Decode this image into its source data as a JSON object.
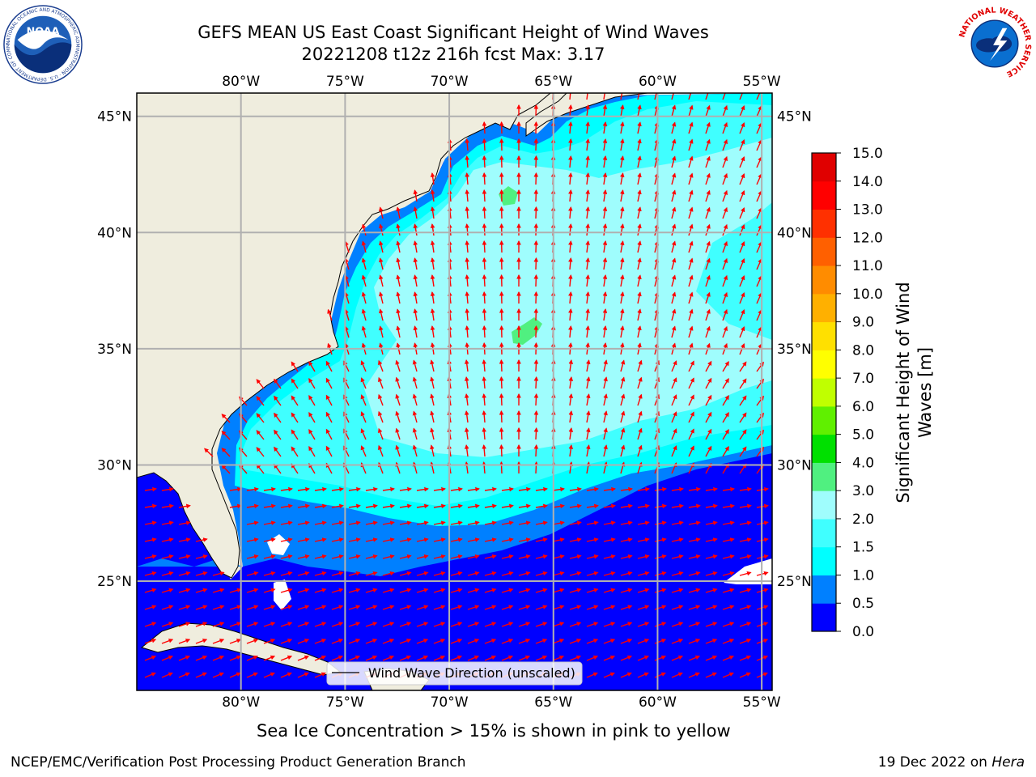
{
  "header": {
    "title_line1": "GEFS MEAN US East Coast Significant Height of Wind Waves",
    "title_line2": "20221208 t12z 216h fcst   Max: 3.17"
  },
  "logos": {
    "left": "noaa-logo",
    "right": "national-weather-service-logo",
    "noaa_text": "NOAA",
    "noaa_ring_text": "NATIONAL OCEANIC AND ATMOSPHERIC ADMINISTRATION · U.S. DEPARTMENT OF COMMERCE",
    "nws_ring_text": "NATIONAL WEATHER SERVICE"
  },
  "map": {
    "lon_labels": [
      "80°W",
      "75°W",
      "70°W",
      "65°W",
      "60°W",
      "55°W"
    ],
    "lat_labels": [
      "45°N",
      "40°N",
      "35°N",
      "30°N",
      "25°N"
    ],
    "lon_range": [
      -85,
      -54.5
    ],
    "lat_range": [
      20.3,
      46
    ],
    "gridlines": true,
    "land_color": "#efedde",
    "arrow_color": "#ff0000",
    "legend_label": "Wind Wave Direction (unscaled)"
  },
  "colorbar": {
    "label_line1": "Significant Height of Wind",
    "label_line2": "Waves [m]",
    "tick_labels": [
      "0.0",
      "0.5",
      "1.0",
      "1.5",
      "2.0",
      "3.0",
      "4.0",
      "5.0",
      "6.0",
      "7.0",
      "8.0",
      "9.0",
      "10.0",
      "11.0",
      "12.0",
      "13.0",
      "14.0",
      "15.0"
    ],
    "colors": [
      "#0000ff",
      "#0080ff",
      "#00ffff",
      "#40ffff",
      "#9ffdfd",
      "#50f080",
      "#00e000",
      "#60f000",
      "#c0ff00",
      "#ffff00",
      "#ffe000",
      "#ffb000",
      "#ff8c00",
      "#ff6000",
      "#ff3000",
      "#ff0000",
      "#e00000"
    ]
  },
  "footer": {
    "caption": "Sea Ice Concentration > 15% is shown in pink to yellow",
    "left": "NCEP/EMC/Verification Post Processing Product Generation Branch",
    "right_date": "19 Dec 2022 on ",
    "right_machine": "Hera"
  }
}
